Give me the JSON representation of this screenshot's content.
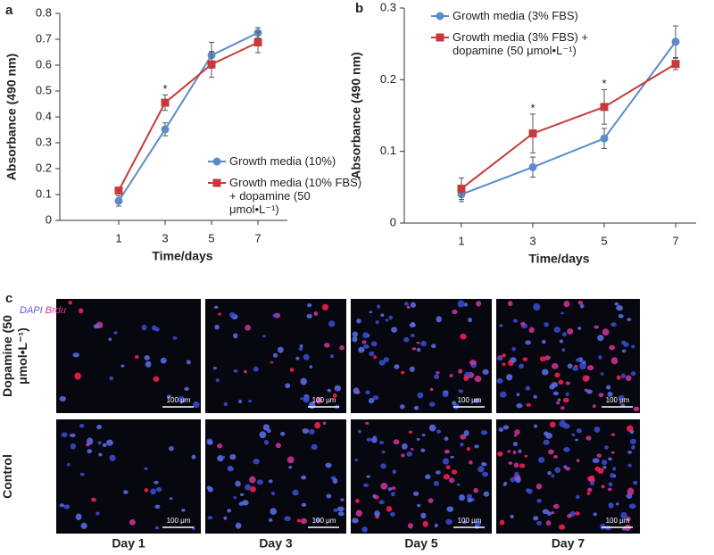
{
  "chart_data": [
    {
      "type": "line",
      "panel_label": "a",
      "ylabel": "Absorbance (490 nm)",
      "xlabel": "Time/days",
      "categories": [
        "1",
        "3",
        "5",
        "7"
      ],
      "ylim": [
        0,
        0.8
      ],
      "yticks": [
        0,
        0.1,
        0.2,
        0.3,
        0.4,
        0.5,
        0.6,
        0.7,
        0.8
      ],
      "series": [
        {
          "name": "Growth media (10%)",
          "color": "#5b8bc9",
          "marker": "circle",
          "values": [
            0.075,
            0.352,
            0.638,
            0.725
          ],
          "errors": [
            0.02,
            0.025,
            0.05,
            0.02
          ]
        },
        {
          "name": "Growth media (10% FBS) + dopamine (50 μmol•L⁻¹)",
          "color": "#c9393b",
          "marker": "square",
          "values": [
            0.115,
            0.455,
            0.603,
            0.688
          ],
          "errors": [
            0.01,
            0.03,
            0.05,
            0.04
          ]
        }
      ],
      "significance": [
        null,
        "*",
        null,
        null
      ]
    },
    {
      "type": "line",
      "panel_label": "b",
      "ylabel": "Absorbance (490 nm)",
      "xlabel": "Time/days",
      "categories": [
        "1",
        "3",
        "5",
        "7"
      ],
      "ylim": [
        0,
        0.3
      ],
      "yticks": [
        0,
        0.1,
        0.2,
        0.3
      ],
      "series": [
        {
          "name": "Growth media (3% FBS)",
          "color": "#5b8bc9",
          "marker": "circle",
          "values": [
            0.04,
            0.078,
            0.118,
            0.253
          ],
          "errors": [
            0.01,
            0.014,
            0.014,
            0.022
          ]
        },
        {
          "name": "Growth media (3% FBS) + dopamine (50 μmol•L⁻¹)",
          "color": "#c9393b",
          "marker": "square",
          "values": [
            0.048,
            0.125,
            0.162,
            0.222
          ],
          "errors": [
            0.015,
            0.027,
            0.024,
            0.008
          ]
        }
      ],
      "significance": [
        null,
        "*",
        "*",
        null
      ]
    }
  ],
  "panel_c": {
    "panel_label": "c",
    "stain": [
      "DAPI",
      "/",
      "Brdu"
    ],
    "rows": [
      "Dopamine (50 μmol•L⁻¹)",
      "Control"
    ],
    "columns": [
      "Day 1",
      "Day 3",
      "Day 5",
      "Day 7"
    ],
    "scale_bar": "100 μm"
  }
}
